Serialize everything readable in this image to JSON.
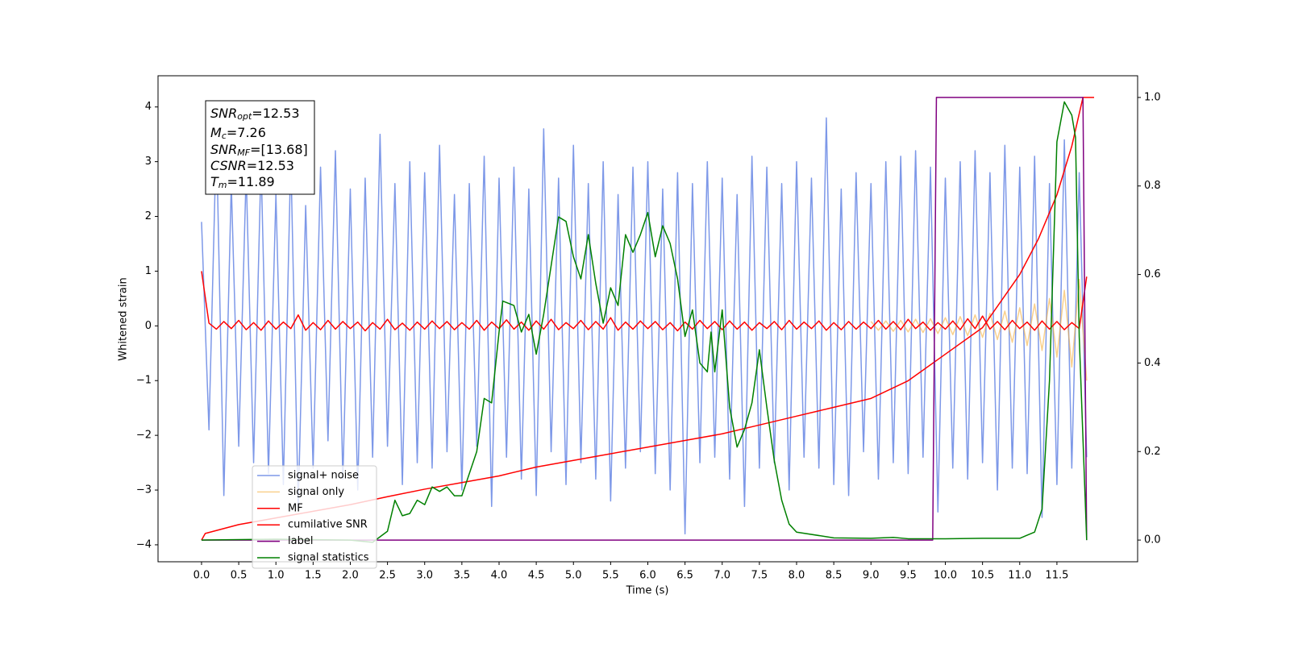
{
  "chart_data": {
    "type": "line",
    "x_label": "Time (s)",
    "y_label": "Whitened strain",
    "annotation": [
      {
        "symbol": "SNR",
        "sub": "opt",
        "text": "=12.53"
      },
      {
        "symbol": "M",
        "sub": "c",
        "text": "=7.26"
      },
      {
        "symbol": "SNR",
        "sub": "MF",
        "text": "=[13.68]"
      },
      {
        "symbol": "CSNR",
        "text": "=12.53"
      },
      {
        "symbol": "T",
        "sub": "m",
        "text": "=11.89"
      }
    ],
    "xlim": [
      -0.585,
      12.585
    ],
    "ylim": [
      -4.31,
      4.57
    ],
    "y2lim": [
      -0.049,
      1.049
    ],
    "xticks": [
      {
        "value": 0,
        "label": "0.0"
      },
      0.5,
      {
        "value": 1,
        "label": "1.0"
      },
      1.5,
      {
        "value": 2,
        "label": "2.0"
      },
      2.5,
      {
        "value": 3,
        "label": "3.0"
      },
      3.5,
      {
        "value": 4,
        "label": "4.0"
      },
      4.5,
      {
        "value": 5,
        "label": "5.0"
      },
      5.5,
      {
        "value": 6,
        "label": "6.0"
      },
      6.5,
      {
        "value": 7,
        "label": "7.0"
      },
      7.5,
      {
        "value": 8,
        "label": "8.0"
      },
      8.5,
      {
        "value": 9,
        "label": "9.0"
      },
      9.5,
      {
        "value": 10,
        "label": "10.0"
      },
      10.5,
      {
        "value": 11,
        "label": "11.0"
      },
      11.5
    ],
    "yticks": [
      {
        "value": -4,
        "label": "−4"
      },
      {
        "value": -3,
        "label": "−3"
      },
      {
        "value": -2,
        "label": "−2"
      },
      {
        "value": -1,
        "label": "−1"
      },
      0,
      1,
      2,
      3,
      4
    ],
    "y2ticks": [
      {
        "value": 0,
        "label": "0.0"
      },
      0.2,
      0.4,
      0.6,
      0.8,
      {
        "value": 1,
        "label": "1.0"
      }
    ],
    "x": [
      0,
      0.1,
      0.2,
      0.3,
      0.4,
      0.5,
      0.6,
      0.7,
      0.8,
      0.9,
      1,
      1.1,
      1.2,
      1.3,
      1.4,
      1.5,
      1.6,
      1.7,
      1.8,
      1.9,
      2,
      2.1,
      2.2,
      2.3,
      2.4,
      2.5,
      2.6,
      2.7,
      2.8,
      2.9,
      3,
      3.1,
      3.2,
      3.3,
      3.4,
      3.5,
      3.6,
      3.7,
      3.8,
      3.9,
      4,
      4.1,
      4.2,
      4.3,
      4.4,
      4.5,
      4.6,
      4.7,
      4.8,
      4.9,
      5,
      5.1,
      5.2,
      5.3,
      5.4,
      5.5,
      5.6,
      5.7,
      5.8,
      5.9,
      6,
      6.1,
      6.2,
      6.3,
      6.4,
      6.5,
      6.6,
      6.7,
      6.8,
      6.9,
      7,
      7.1,
      7.2,
      7.3,
      7.4,
      7.5,
      7.6,
      7.7,
      7.8,
      7.9,
      8,
      8.1,
      8.2,
      8.3,
      8.4,
      8.5,
      8.6,
      8.7,
      8.8,
      8.9,
      9,
      9.1,
      9.2,
      9.3,
      9.4,
      9.5,
      9.6,
      9.7,
      9.8,
      9.9,
      10,
      10.1,
      10.2,
      10.3,
      10.4,
      10.5,
      10.6,
      10.7,
      10.8,
      10.9,
      11,
      11.1,
      11.2,
      11.3,
      11.4,
      11.5,
      11.6,
      11.7,
      11.8,
      11.9
    ],
    "series": [
      {
        "name": "signal+ noise",
        "color": "#6f8de6",
        "opacity": 0.9,
        "values": [
          1.9,
          -1.9,
          3.5,
          -3.1,
          2.6,
          -2.2,
          2.8,
          -2.5,
          3.0,
          -2.7,
          2.4,
          -2.9,
          3.1,
          -3.3,
          2.2,
          -2.6,
          2.9,
          -2.1,
          3.2,
          -2.8,
          2.5,
          -3.0,
          2.7,
          -2.4,
          3.5,
          -2.2,
          2.6,
          -2.9,
          3.0,
          -2.5,
          2.8,
          -2.6,
          3.3,
          -2.3,
          2.4,
          -3.0,
          2.6,
          -2.2,
          3.1,
          -3.3,
          2.7,
          -2.4,
          2.9,
          -2.8,
          2.5,
          -3.1,
          3.6,
          -2.3,
          2.7,
          -2.9,
          3.3,
          -2.5,
          2.6,
          -2.8,
          3.0,
          -3.2,
          2.4,
          -2.6,
          2.9,
          -2.3,
          3.0,
          -2.7,
          2.5,
          -3.0,
          2.8,
          -3.8,
          2.6,
          -2.5,
          3.0,
          -2.4,
          2.7,
          -2.8,
          2.4,
          -3.3,
          3.1,
          -2.6,
          2.9,
          -2.5,
          2.6,
          -3.0,
          3.0,
          -2.4,
          2.7,
          -2.6,
          3.8,
          -2.9,
          2.5,
          -3.1,
          2.8,
          -2.3,
          2.6,
          -2.8,
          3.0,
          -2.5,
          3.1,
          -2.7,
          3.2,
          -2.4,
          2.9,
          -3.4,
          2.7,
          -2.6,
          3.0,
          -2.8,
          3.2,
          -2.5,
          2.8,
          -3.0,
          3.3,
          -2.6,
          2.9,
          -2.7,
          3.1,
          -3.5,
          2.6,
          -2.9,
          3.4,
          -2.6,
          2.8,
          -2.4
        ]
      },
      {
        "name": "signal only",
        "color": "#f5b041",
        "opacity": 0.6,
        "x": [
          9,
          9.1,
          9.2,
          9.3,
          9.4,
          9.5,
          9.6,
          9.7,
          9.8,
          9.9,
          10,
          10.1,
          10.2,
          10.3,
          10.4,
          10.5,
          10.6,
          10.7,
          10.8,
          10.9,
          11,
          11.1,
          11.2,
          11.3,
          11.4,
          11.5,
          11.6,
          11.7,
          11.8,
          11.9
        ],
        "values": [
          0.08,
          -0.08,
          0.09,
          -0.1,
          0.1,
          -0.11,
          0.12,
          -0.12,
          0.13,
          -0.14,
          0.15,
          -0.16,
          0.17,
          -0.18,
          0.2,
          -0.21,
          0.23,
          -0.25,
          0.27,
          -0.3,
          0.33,
          -0.36,
          0.4,
          -0.45,
          0.5,
          -0.57,
          0.65,
          -0.75,
          0.85,
          -1.0
        ]
      },
      {
        "name": "MF",
        "color": "#ff0000",
        "opacity": 1,
        "values": [
          1.0,
          0.05,
          -0.06,
          0.08,
          -0.05,
          0.1,
          -0.07,
          0.06,
          -0.08,
          0.09,
          -0.06,
          0.07,
          -0.05,
          0.2,
          -0.08,
          0.06,
          -0.07,
          0.1,
          -0.06,
          0.08,
          -0.05,
          0.07,
          -0.09,
          0.06,
          -0.06,
          0.12,
          -0.07,
          0.05,
          -0.08,
          0.07,
          -0.06,
          0.09,
          -0.05,
          0.08,
          -0.07,
          0.06,
          -0.06,
          0.1,
          -0.08,
          0.07,
          -0.05,
          0.11,
          -0.06,
          0.07,
          -0.08,
          0.09,
          -0.06,
          0.12,
          -0.07,
          0.06,
          -0.05,
          0.1,
          -0.07,
          0.08,
          -0.06,
          0.15,
          -0.08,
          0.07,
          -0.06,
          0.09,
          -0.05,
          0.08,
          -0.07,
          0.06,
          -0.09,
          0.07,
          -0.06,
          0.1,
          -0.05,
          0.08,
          -0.07,
          0.09,
          -0.06,
          0.07,
          -0.08,
          0.06,
          -0.05,
          0.08,
          -0.07,
          0.1,
          -0.06,
          0.07,
          -0.05,
          0.09,
          -0.08,
          0.06,
          -0.07,
          0.08,
          -0.06,
          0.07,
          -0.05,
          0.1,
          -0.06,
          0.08,
          -0.07,
          0.12,
          -0.05,
          0.07,
          -0.08,
          0.06,
          -0.06,
          0.09,
          -0.07,
          0.13,
          -0.05,
          0.18,
          -0.06,
          0.08,
          -0.07,
          0.1,
          -0.05,
          0.07,
          -0.08,
          0.09,
          -0.06,
          0.08,
          -0.07,
          0.06,
          -0.05,
          0.9
        ]
      },
      {
        "name": "cumilative SNR",
        "color": "#ff0000",
        "opacity": 1,
        "axis": "y2",
        "x": [
          0,
          0.05,
          0.5,
          1,
          1.5,
          2,
          2.5,
          3,
          3.5,
          4,
          4.5,
          5,
          5.5,
          6,
          6.5,
          7,
          7.5,
          8,
          8.5,
          9,
          9.5,
          10,
          10.5,
          11,
          11.25,
          11.5,
          11.7,
          11.85,
          12.0
        ],
        "values": [
          0.0,
          0.015,
          0.035,
          0.05,
          0.065,
          0.08,
          0.098,
          0.115,
          0.13,
          0.145,
          0.165,
          0.18,
          0.195,
          0.21,
          0.225,
          0.24,
          0.26,
          0.28,
          0.3,
          0.32,
          0.36,
          0.42,
          0.48,
          0.6,
          0.68,
          0.78,
          0.89,
          1.0,
          1.0
        ]
      },
      {
        "name": "label",
        "color": "#800080",
        "opacity": 1,
        "axis": "y2",
        "x": [
          0,
          9.83,
          9.88,
          11.85,
          11.9
        ],
        "values": [
          0,
          0,
          1,
          1,
          0
        ]
      },
      {
        "name": "signal statistics",
        "color": "#008000",
        "opacity": 1,
        "axis": "y2",
        "x": [
          0,
          1,
          2,
          2.3,
          2.5,
          2.6,
          2.7,
          2.8,
          2.9,
          3.0,
          3.1,
          3.2,
          3.3,
          3.4,
          3.5,
          3.7,
          3.8,
          3.9,
          4.0,
          4.05,
          4.2,
          4.3,
          4.4,
          4.5,
          4.6,
          4.7,
          4.8,
          4.9,
          5.0,
          5.1,
          5.2,
          5.3,
          5.4,
          5.5,
          5.6,
          5.7,
          5.8,
          5.9,
          6.0,
          6.1,
          6.2,
          6.3,
          6.4,
          6.5,
          6.6,
          6.7,
          6.8,
          6.85,
          6.9,
          7.0,
          7.1,
          7.2,
          7.3,
          7.4,
          7.5,
          7.6,
          7.7,
          7.8,
          7.9,
          8.0,
          8.5,
          9.0,
          9.3,
          9.5,
          10.0,
          10.5,
          11.0,
          11.2,
          11.3,
          11.4,
          11.5,
          11.6,
          11.7,
          11.75,
          11.8,
          11.9
        ],
        "values": [
          0.0,
          0.002,
          0.0,
          -0.005,
          0.02,
          0.09,
          0.055,
          0.06,
          0.09,
          0.08,
          0.12,
          0.11,
          0.12,
          0.1,
          0.1,
          0.2,
          0.32,
          0.31,
          0.47,
          0.54,
          0.53,
          0.47,
          0.51,
          0.42,
          0.51,
          0.62,
          0.73,
          0.72,
          0.64,
          0.59,
          0.69,
          0.58,
          0.49,
          0.57,
          0.53,
          0.69,
          0.65,
          0.69,
          0.74,
          0.64,
          0.71,
          0.67,
          0.59,
          0.46,
          0.52,
          0.4,
          0.38,
          0.47,
          0.38,
          0.52,
          0.3,
          0.21,
          0.25,
          0.31,
          0.43,
          0.3,
          0.18,
          0.09,
          0.036,
          0.018,
          0.005,
          0.004,
          0.006,
          0.003,
          0.003,
          0.004,
          0.004,
          0.018,
          0.07,
          0.36,
          0.9,
          0.99,
          0.96,
          0.91,
          0.46,
          0.0
        ]
      }
    ]
  }
}
